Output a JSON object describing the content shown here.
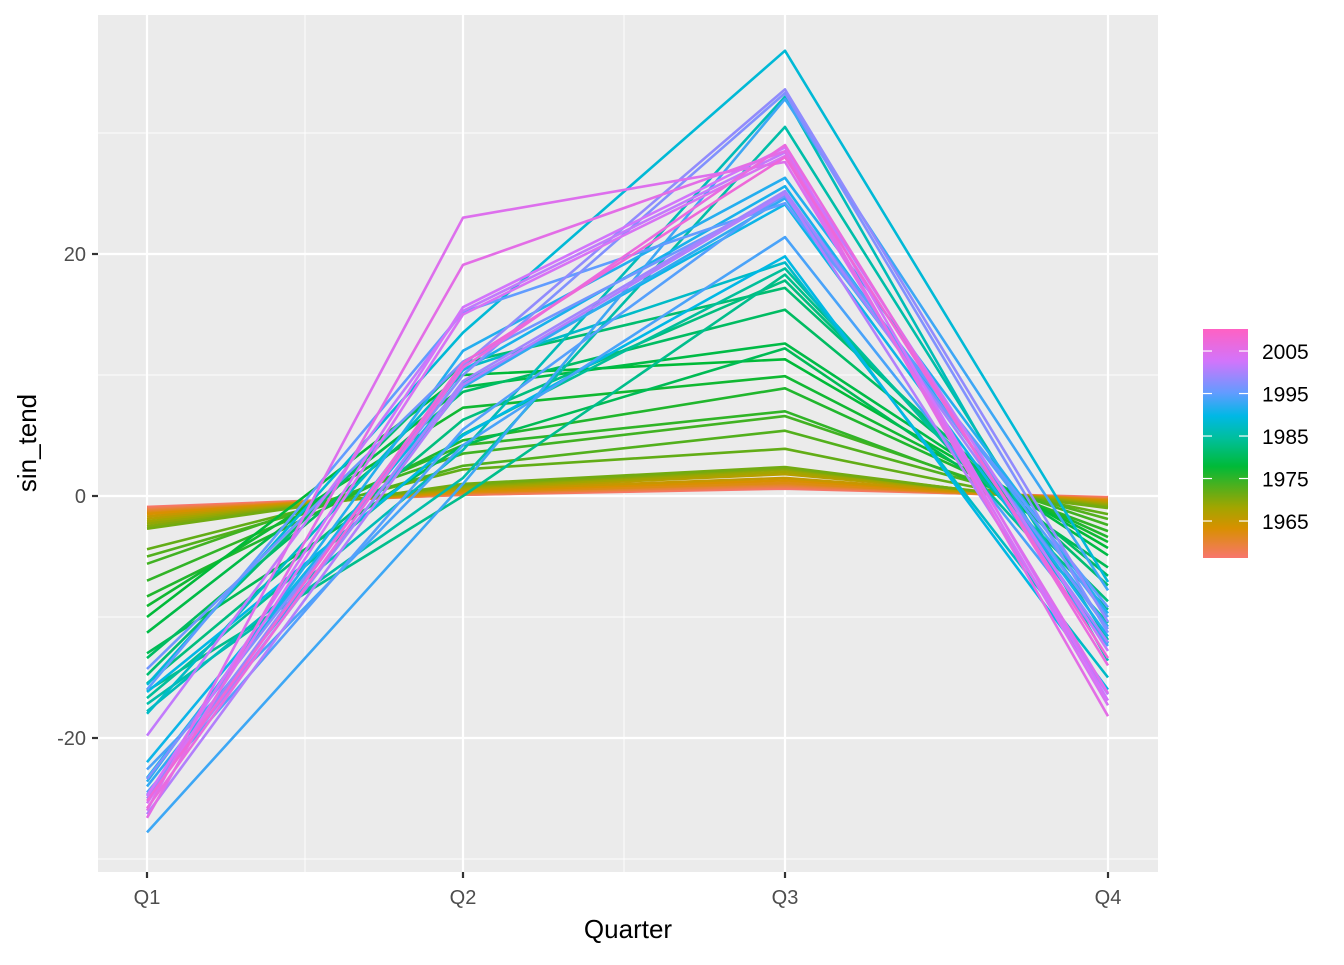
{
  "chart_data": {
    "type": "line",
    "title": "",
    "xlabel": "Quarter",
    "ylabel": "sin_tend",
    "categories": [
      "Q1",
      "Q2",
      "Q3",
      "Q4"
    ],
    "y_ticks": [
      -20,
      0,
      20
    ],
    "ylim": [
      -31.5,
      39.5
    ],
    "grid": true,
    "legend": {
      "title": "",
      "type": "colorbar",
      "position": "right",
      "labels": [
        "2005",
        "1995",
        "1985",
        "1975",
        "1965"
      ],
      "label_values": [
        2005,
        1995,
        1985,
        1975,
        1965
      ],
      "range": [
        1956,
        2010
      ],
      "colors": [
        "#F8766D",
        "#D89000",
        "#A3A500",
        "#39B600",
        "#00BF7D",
        "#00BFC4",
        "#00B0F6",
        "#619CFF",
        "#9590FF",
        "#DB72FB",
        "#FF61C3"
      ]
    },
    "series": [
      {
        "name": "1956",
        "values": [
          -0.9,
          0.1,
          0.6,
          -0.1
        ]
      },
      {
        "name": "1957",
        "values": [
          -1.0,
          0.1,
          0.7,
          -0.2
        ]
      },
      {
        "name": "1958",
        "values": [
          -1.1,
          0.2,
          0.8,
          -0.2
        ]
      },
      {
        "name": "1959",
        "values": [
          -1.2,
          0.2,
          0.9,
          -0.3
        ]
      },
      {
        "name": "1960",
        "values": [
          -1.3,
          0.3,
          1.0,
          -0.3
        ]
      },
      {
        "name": "1961",
        "values": [
          -1.4,
          0.3,
          1.1,
          -0.4
        ]
      },
      {
        "name": "1962",
        "values": [
          -1.5,
          0.4,
          1.3,
          -0.4
        ]
      },
      {
        "name": "1963",
        "values": [
          -1.7,
          0.5,
          1.5,
          -0.5
        ]
      },
      {
        "name": "1964",
        "values": [
          -1.9,
          0.6,
          1.8,
          -0.6
        ]
      },
      {
        "name": "1965",
        "values": [
          -2.1,
          0.7,
          2.0,
          -0.7
        ]
      },
      {
        "name": "1966",
        "values": [
          -2.3,
          0.8,
          2.2,
          -0.8
        ]
      },
      {
        "name": "1967",
        "values": [
          -2.5,
          0.9,
          2.3,
          -0.9
        ]
      },
      {
        "name": "1968",
        "values": [
          -2.7,
          1.0,
          2.4,
          -1.0
        ]
      },
      {
        "name": "1969",
        "values": [
          -4.4,
          2.2,
          3.9,
          -1.5
        ]
      },
      {
        "name": "1970",
        "values": [
          -5.0,
          2.5,
          5.4,
          -1.9
        ]
      },
      {
        "name": "1971",
        "values": [
          -5.6,
          3.5,
          6.6,
          -2.4
        ]
      },
      {
        "name": "1972",
        "values": [
          -7.0,
          4.2,
          7.0,
          -2.9
        ]
      },
      {
        "name": "1973",
        "values": [
          -8.3,
          4.6,
          8.9,
          -3.4
        ]
      },
      {
        "name": "1974",
        "values": [
          -9.1,
          7.3,
          9.9,
          -3.8
        ]
      },
      {
        "name": "1975",
        "values": [
          -10.0,
          10.0,
          11.3,
          -4.3
        ]
      },
      {
        "name": "1976",
        "values": [
          -11.3,
          9.0,
          12.6,
          -4.9
        ]
      },
      {
        "name": "1977",
        "values": [
          -13.0,
          4.2,
          12.2,
          -5.9
        ]
      },
      {
        "name": "1978",
        "values": [
          -13.4,
          8.6,
          15.4,
          -6.6
        ]
      },
      {
        "name": "1979",
        "values": [
          -14.8,
          11.0,
          17.2,
          -7.4
        ]
      },
      {
        "name": "1980",
        "values": [
          -15.5,
          6.3,
          17.8,
          -8.7
        ]
      },
      {
        "name": "1981",
        "values": [
          -16.1,
          0.0,
          18.3,
          -9.4
        ]
      },
      {
        "name": "1982",
        "values": [
          -16.7,
          5.1,
          18.8,
          -10.5
        ]
      },
      {
        "name": "1983",
        "values": [
          -17.2,
          1.5,
          30.5,
          -11.9
        ]
      },
      {
        "name": "1984",
        "values": [
          -17.8,
          3.8,
          33.0,
          -13.6
        ]
      },
      {
        "name": "1985",
        "values": [
          -18.0,
          10.5,
          19.3,
          -15.0
        ]
      },
      {
        "name": "1986",
        "values": [
          -15.6,
          13.5,
          36.8,
          -7.1
        ]
      },
      {
        "name": "1987",
        "values": [
          -16.2,
          5.0,
          19.8,
          -16.0
        ]
      },
      {
        "name": "1988",
        "values": [
          -22.0,
          9.3,
          24.1,
          -12.2
        ]
      },
      {
        "name": "1989",
        "values": [
          -23.3,
          10.4,
          25.6,
          -11.6
        ]
      },
      {
        "name": "1990",
        "values": [
          -23.6,
          12.0,
          26.3,
          -9.7
        ]
      },
      {
        "name": "1991",
        "values": [
          -24.0,
          9.0,
          24.6,
          -10.8
        ]
      },
      {
        "name": "1992",
        "values": [
          -27.8,
          1.0,
          32.8,
          -7.8
        ]
      },
      {
        "name": "1993",
        "values": [
          -22.6,
          4.2,
          21.4,
          -12.4
        ]
      },
      {
        "name": "1994",
        "values": [
          -24.5,
          5.5,
          25.0,
          -10.0
        ]
      },
      {
        "name": "1995",
        "values": [
          -16.0,
          15.2,
          24.2,
          -9.2
        ]
      },
      {
        "name": "1996",
        "values": [
          -14.3,
          11.1,
          24.8,
          -11.0
        ]
      },
      {
        "name": "1997",
        "values": [
          -23.4,
          10.0,
          33.3,
          -11.3
        ]
      },
      {
        "name": "1998",
        "values": [
          -24.7,
          10.8,
          33.6,
          -10.4
        ]
      },
      {
        "name": "1999",
        "values": [
          -25.0,
          9.5,
          25.2,
          -12.1
        ]
      },
      {
        "name": "2000",
        "values": [
          -26.3,
          9.2,
          25.0,
          -16.4
        ]
      },
      {
        "name": "2001",
        "values": [
          -19.8,
          15.3,
          28.4,
          -12.8
        ]
      },
      {
        "name": "2002",
        "values": [
          -24.8,
          15.6,
          28.8,
          -16.9
        ]
      },
      {
        "name": "2003",
        "values": [
          -25.4,
          15.0,
          28.1,
          -17.3
        ]
      },
      {
        "name": "2004",
        "values": [
          -26.0,
          23.0,
          27.6,
          -16.3
        ]
      },
      {
        "name": "2005",
        "values": [
          -26.6,
          19.1,
          28.5,
          -18.2
        ]
      },
      {
        "name": "2006",
        "values": [
          -25.8,
          10.6,
          29.0,
          -14.0
        ]
      },
      {
        "name": "2007",
        "values": [
          -25.2,
          11.0,
          28.0,
          -13.4
        ]
      }
    ]
  },
  "axes": {
    "x_title": "Quarter",
    "y_title": "sin_tend",
    "x_tick_labels": [
      "Q1",
      "Q2",
      "Q3",
      "Q4"
    ],
    "y_tick_labels": [
      "-20",
      "0",
      "20"
    ]
  },
  "legend": {
    "labels": [
      "2005",
      "1995",
      "1985",
      "1975",
      "1965"
    ]
  },
  "colors": {
    "panel_background": "#EBEBEB",
    "grid_major": "#FFFFFF",
    "grid_minor": "#F5F5F5",
    "tick_text": "#4D4D4D",
    "axis_title": "#000000"
  }
}
